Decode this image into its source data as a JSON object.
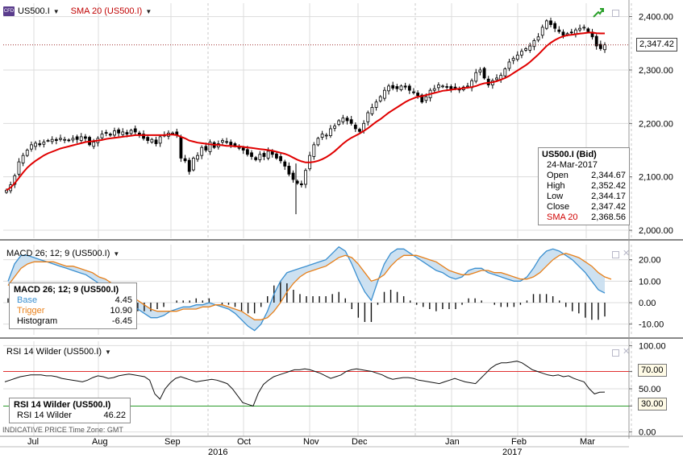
{
  "chart_data": [
    {
      "type": "candlestick",
      "title": "US500.I",
      "overlay": "SMA 20 (US500.I)",
      "ylim": [
        1985,
        2425
      ],
      "yticks": [
        "2,000.00",
        "2,100.00",
        "2,200.00",
        "2,300.00",
        "2,400.00"
      ],
      "last_price": "2,347.42",
      "series": [
        {
          "name": "US500.I",
          "close": [
            2075,
            2085,
            2102,
            2128,
            2140,
            2150,
            2160,
            2163,
            2160,
            2165,
            2168,
            2170,
            2168,
            2172,
            2170,
            2168,
            2172,
            2170,
            2175,
            2172,
            2160,
            2165,
            2172,
            2180,
            2182,
            2178,
            2186,
            2182,
            2184,
            2180,
            2187,
            2184,
            2180,
            2172,
            2168,
            2170,
            2162,
            2175,
            2178,
            2182,
            2182,
            2178,
            2135,
            2130,
            2110,
            2135,
            2140,
            2155,
            2150,
            2165,
            2155,
            2162,
            2168,
            2165,
            2160,
            2158,
            2155,
            2150,
            2142,
            2138,
            2132,
            2142,
            2138,
            2148,
            2142,
            2135,
            2130,
            2120,
            2105,
            2095,
            2088,
            2085,
            2112,
            2140,
            2160,
            2172,
            2180,
            2178,
            2190,
            2195,
            2205,
            2210,
            2205,
            2200,
            2190,
            2185,
            2200,
            2220,
            2230,
            2240,
            2250,
            2262,
            2270,
            2266,
            2265,
            2270,
            2268,
            2262,
            2258,
            2252,
            2240,
            2250,
            2262,
            2265,
            2272,
            2270,
            2268,
            2265,
            2266,
            2263,
            2268,
            2270,
            2280,
            2295,
            2300,
            2285,
            2272,
            2280,
            2285,
            2290,
            2302,
            2315,
            2322,
            2328,
            2335,
            2340,
            2345,
            2355,
            2362,
            2380,
            2392,
            2385,
            2378,
            2372,
            2365,
            2368,
            2370,
            2375,
            2378,
            2380,
            2372,
            2362,
            2345,
            2340,
            2347
          ]
        },
        {
          "name": "SMA 20",
          "values": [
            2075,
            2080,
            2088,
            2098,
            2108,
            2117,
            2124,
            2130,
            2135,
            2140,
            2144,
            2147,
            2150,
            2153,
            2155,
            2157,
            2159,
            2161,
            2163,
            2165,
            2166,
            2167,
            2168,
            2169,
            2171,
            2172,
            2173,
            2174,
            2175,
            2176,
            2177,
            2178,
            2178,
            2178,
            2178,
            2178,
            2178,
            2178,
            2178,
            2179,
            2179,
            2178,
            2175,
            2172,
            2168,
            2166,
            2164,
            2163,
            2162,
            2161,
            2160,
            2160,
            2159,
            2158,
            2158,
            2157,
            2157,
            2156,
            2155,
            2154,
            2153,
            2152,
            2151,
            2150,
            2149,
            2147,
            2145,
            2143,
            2140,
            2136,
            2132,
            2129,
            2127,
            2127,
            2128,
            2130,
            2133,
            2137,
            2142,
            2148,
            2155,
            2162,
            2168,
            2173,
            2177,
            2181,
            2186,
            2191,
            2197,
            2203,
            2208,
            2214,
            2220,
            2225,
            2230,
            2235,
            2240,
            2244,
            2247,
            2250,
            2251,
            2253,
            2255,
            2257,
            2259,
            2261,
            2262,
            2263,
            2264,
            2265,
            2266,
            2267,
            2268,
            2270,
            2273,
            2275,
            2276,
            2277,
            2279,
            2282,
            2285,
            2289,
            2294,
            2299,
            2304,
            2309,
            2315,
            2322,
            2329,
            2337,
            2345,
            2351,
            2356,
            2360,
            2363,
            2365,
            2366,
            2367,
            2368,
            2369,
            2370,
            2370,
            2369,
            2368.56,
            2368.56
          ]
        }
      ]
    },
    {
      "type": "line",
      "title": "MACD 26; 12; 9 (US500.I)",
      "ylim": [
        -15,
        27
      ],
      "yticks": [
        "-10.00",
        "0.00",
        "10.00",
        "20.00"
      ],
      "series": [
        {
          "name": "Base",
          "color": "#3a8fd0",
          "values": [
            10,
            18,
            22,
            22,
            21,
            20,
            19,
            18,
            17,
            16,
            15,
            14,
            13,
            11,
            9,
            7,
            5,
            3,
            1,
            -1,
            -3,
            -5,
            -7,
            -7,
            -6,
            -4,
            -3,
            -2,
            -2,
            -1,
            -1,
            0,
            -1,
            -2,
            -3,
            -5,
            -8,
            -11,
            -13,
            -10,
            -4,
            4,
            10,
            14,
            15,
            16,
            17,
            18,
            19,
            20,
            23,
            26,
            24,
            18,
            11,
            5,
            1,
            10,
            18,
            23,
            25,
            25,
            23,
            21,
            19,
            17,
            15,
            14,
            12,
            11,
            12,
            15,
            16,
            16,
            14,
            13,
            12,
            11,
            10,
            10,
            12,
            16,
            21,
            24,
            25,
            24,
            22,
            20,
            17,
            14,
            10,
            6,
            4.45
          ]
        },
        {
          "name": "Trigger",
          "color": "#e8801a",
          "values": [
            8,
            12,
            16,
            18,
            19,
            19,
            19,
            19,
            18,
            17,
            17,
            16,
            15,
            14,
            12,
            11,
            9,
            7,
            5,
            3,
            1,
            -1,
            -3,
            -4,
            -4,
            -4,
            -4,
            -3,
            -3,
            -3,
            -2,
            -2,
            -1,
            -1,
            -2,
            -3,
            -4,
            -6,
            -8,
            -8,
            -7,
            -4,
            0,
            5,
            9,
            12,
            14,
            15,
            16,
            17,
            19,
            21,
            22,
            21,
            18,
            14,
            10,
            11,
            13,
            17,
            20,
            22,
            22,
            22,
            21,
            20,
            19,
            17,
            15,
            14,
            13,
            13,
            14,
            15,
            15,
            14,
            14,
            13,
            12,
            11,
            11,
            12,
            14,
            17,
            20,
            22,
            23,
            22,
            21,
            19,
            17,
            14,
            12,
            10.9
          ]
        },
        {
          "name": "Histogram",
          "color": "#000000",
          "values": [
            2,
            6,
            6,
            4,
            2,
            1,
            0,
            -1,
            -1,
            -1,
            -2,
            -2,
            -2,
            -3,
            -3,
            -4,
            -4,
            -4,
            -4,
            -4,
            -4,
            -4,
            -4,
            -3,
            -2,
            0,
            1,
            1,
            1,
            2,
            1,
            2,
            0,
            -1,
            -1,
            -2,
            -4,
            -5,
            -5,
            -2,
            3,
            8,
            10,
            9,
            6,
            4,
            3,
            3,
            3,
            3,
            4,
            5,
            2,
            -3,
            -7,
            -9,
            -9,
            -1,
            5,
            6,
            5,
            3,
            1,
            -1,
            -2,
            -3,
            -4,
            -3,
            -3,
            -3,
            -1,
            2,
            2,
            1,
            0,
            -1,
            -2,
            -2,
            -2,
            -1,
            1,
            4,
            4,
            4,
            3,
            1,
            -2,
            -4,
            -5,
            -7,
            -8,
            -8,
            -6.45
          ]
        }
      ]
    },
    {
      "type": "line",
      "title": "RSI 14 Wilder (US500.I)",
      "ylim": [
        -5,
        105
      ],
      "yticks": [
        "0.00",
        "30.00",
        "50.00",
        "70.00",
        "100.00"
      ],
      "levels": {
        "upper": "70.00",
        "lower": "30.00"
      },
      "series": [
        {
          "name": "RSI 14 Wilder",
          "values": [
            58,
            60,
            62,
            64,
            65,
            66,
            66,
            66,
            65,
            65,
            64,
            62,
            61,
            60,
            59,
            58,
            60,
            63,
            65,
            64,
            62,
            63,
            65,
            66,
            67,
            66,
            65,
            64,
            60,
            44,
            38,
            50,
            57,
            62,
            64,
            62,
            60,
            58,
            59,
            60,
            61,
            60,
            58,
            56,
            50,
            42,
            34,
            32,
            30,
            45,
            55,
            60,
            64,
            66,
            68,
            70,
            72,
            72,
            73,
            72,
            70,
            68,
            65,
            62,
            64,
            66,
            70,
            72,
            73,
            72,
            71,
            70,
            68,
            66,
            63,
            61,
            62,
            63,
            63,
            62,
            60,
            59,
            58,
            57,
            56,
            58,
            60,
            62,
            60,
            58,
            57,
            56,
            62,
            68,
            74,
            78,
            80,
            80,
            81,
            82,
            80,
            76,
            72,
            70,
            68,
            66,
            65,
            66,
            64,
            65,
            62,
            60,
            58,
            50,
            44,
            46,
            46.22
          ]
        }
      ]
    }
  ],
  "header": {
    "symbol": "US500.I",
    "sma_label": "SMA 20 (US500.I)",
    "macd_label": "MACD 26; 12; 9 (US500.I)",
    "rsi_label": "RSI 14 Wilder (US500.I)",
    "logo_text": "CFD"
  },
  "ohlc_box": {
    "title": "US500.I (Bid)",
    "date": "24-Mar-2017",
    "open_label": "Open",
    "open": "2,344.67",
    "high_label": "High",
    "high": "2,352.42",
    "low_label": "Low",
    "low": "2,344.17",
    "close_label": "Close",
    "close": "2,347.42",
    "sma_label": "SMA 20",
    "sma": "2,368.56"
  },
  "macd_box": {
    "title": "MACD 26; 12; 9 (US500.I)",
    "base_label": "Base",
    "base": "4.45",
    "trigger_label": "Trigger",
    "trigger": "10.90",
    "hist_label": "Histogram",
    "hist": "-6.45"
  },
  "rsi_box": {
    "title": "RSI 14 Wilder (US500.I)",
    "line_label": "RSI 14 Wilder",
    "value": "46.22"
  },
  "x_axis": {
    "months": [
      "Jul",
      "Aug",
      "Sep",
      "Oct",
      "Nov",
      "Dec",
      "Jan",
      "Feb",
      "Mar"
    ],
    "years": [
      "2016",
      "2017"
    ]
  },
  "footer": "INDICATIVE PRICE  Time Zone: GMT",
  "colors": {
    "sma": "#e00000",
    "base": "#3a8fd0",
    "trigger": "#e8801a",
    "rsi_upper": "#e03030",
    "rsi_lower": "#2a9a2a",
    "grid": "#dcdcdc"
  }
}
